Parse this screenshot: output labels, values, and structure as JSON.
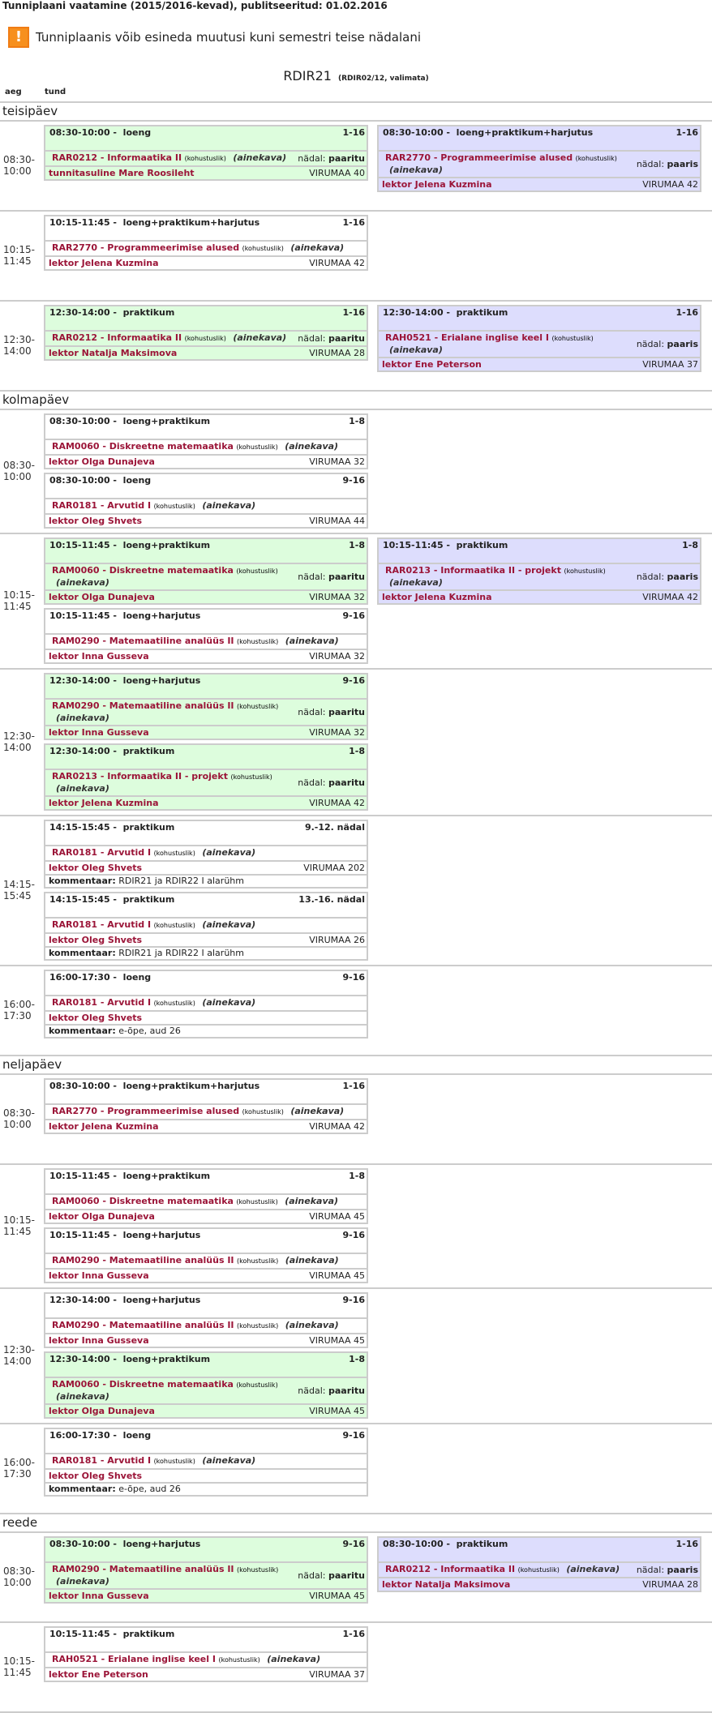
{
  "page": {
    "title": "Tunniplaani vaatamine (2015/2016-kevad), publitseeritud: 01.02.2016",
    "warning": "Tunniplaanis võib esineda muutusi kuni semestri teise nädalani",
    "warning_icon": "exclamation-icon",
    "group_name": "RDIR21",
    "group_sub": "(RDIR02/12, valimata)",
    "col_time": "aeg",
    "col_lesson": "tund"
  },
  "labels": {
    "week": "nädal:",
    "comment": "kommentaar:",
    "required": "(kohustuslik)",
    "ainekava": "(ainekava)"
  },
  "colors": {
    "green": "#ddfddd",
    "purple": "#ddddfd",
    "link": "#9b1538",
    "warning": "#f7901e"
  },
  "days": [
    {
      "name": "teisipäev",
      "slots": [
        {
          "start": "08:30-",
          "end": "10:00",
          "cols": [
            [
              {
                "color": "green",
                "time": "08:30-10:00 -",
                "type": "loeng",
                "weeks": "1-16",
                "course": "RAR0212 - Informaatika II",
                "parity": "paaritu",
                "teacher": "tunnitasuline Mare Roosileht",
                "room": "VIRUMAA 40"
              }
            ],
            [
              {
                "color": "purple",
                "time": "08:30-10:00 -",
                "type": "loeng+praktikum+harjutus",
                "weeks": "1-16",
                "course": "RAR2770 - Programmeerimise alused",
                "parity": "paaris",
                "teacher": "lektor Jelena Kuzmina",
                "room": "VIRUMAA 42"
              }
            ]
          ]
        },
        {
          "start": "10:15-",
          "end": "11:45",
          "cols": [
            [
              {
                "color": "white",
                "time": "10:15-11:45 -",
                "type": "loeng+praktikum+harjutus",
                "weeks": "1-16",
                "course": "RAR2770 - Programmeerimise alused",
                "teacher": "lektor Jelena Kuzmina",
                "room": "VIRUMAA 42"
              }
            ]
          ]
        },
        {
          "start": "12:30-",
          "end": "14:00",
          "cols": [
            [
              {
                "color": "green",
                "time": "12:30-14:00 -",
                "type": "praktikum",
                "weeks": "1-16",
                "course": "RAR0212 - Informaatika II",
                "parity": "paaritu",
                "teacher": "lektor Natalja Maksimova",
                "room": "VIRUMAA 28"
              }
            ],
            [
              {
                "color": "purple",
                "time": "12:30-14:00 -",
                "type": "praktikum",
                "weeks": "1-16",
                "course": "RAH0521 - Erialane inglise keel I",
                "parity": "paaris",
                "teacher": "lektor Ene Peterson",
                "room": "VIRUMAA 37"
              }
            ]
          ]
        }
      ]
    },
    {
      "name": "kolmapäev",
      "slots": [
        {
          "start": "08:30-",
          "end": "10:00",
          "cols": [
            [
              {
                "color": "white",
                "time": "08:30-10:00 -",
                "type": "loeng+praktikum",
                "weeks": "1-8",
                "course": "RAM0060 - Diskreetne matemaatika",
                "teacher": "lektor Olga Dunajeva",
                "room": "VIRUMAA 32"
              },
              {
                "color": "white",
                "time": "08:30-10:00 -",
                "type": "loeng",
                "weeks": "9-16",
                "course": "RAR0181 - Arvutid I",
                "teacher": "lektor Oleg Shvets",
                "room": "VIRUMAA 44"
              }
            ]
          ]
        },
        {
          "start": "10:15-",
          "end": "11:45",
          "cols": [
            [
              {
                "color": "green",
                "time": "10:15-11:45 -",
                "type": "loeng+praktikum",
                "weeks": "1-8",
                "course": "RAM0060 - Diskreetne matemaatika",
                "parity": "paaritu",
                "teacher": "lektor Olga Dunajeva",
                "room": "VIRUMAA 32"
              },
              {
                "color": "white",
                "time": "10:15-11:45 -",
                "type": "loeng+harjutus",
                "weeks": "9-16",
                "course": "RAM0290 - Matemaatiline analüüs II",
                "teacher": "lektor Inna Gusseva",
                "room": "VIRUMAA 32"
              }
            ],
            [
              {
                "color": "purple",
                "time": "10:15-11:45 -",
                "type": "praktikum",
                "weeks": "1-8",
                "course": "RAR0213 - Informaatika II - projekt",
                "parity": "paaris",
                "teacher": "lektor Jelena Kuzmina",
                "room": "VIRUMAA 42"
              }
            ]
          ]
        },
        {
          "start": "12:30-",
          "end": "14:00",
          "cols": [
            [
              {
                "color": "green",
                "time": "12:30-14:00 -",
                "type": "loeng+harjutus",
                "weeks": "9-16",
                "course": "RAM0290 - Matemaatiline analüüs II",
                "parity": "paaritu",
                "teacher": "lektor Inna Gusseva",
                "room": "VIRUMAA 32"
              },
              {
                "color": "green",
                "time": "12:30-14:00 -",
                "type": "praktikum",
                "weeks": "1-8",
                "course": "RAR0213 - Informaatika II - projekt",
                "parity": "paaritu",
                "teacher": "lektor Jelena Kuzmina",
                "room": "VIRUMAA 42"
              }
            ]
          ]
        },
        {
          "start": "14:15-",
          "end": "15:45",
          "cols": [
            [
              {
                "color": "white",
                "time": "14:15-15:45 -",
                "type": "praktikum",
                "weeks": "9.-12. nädal",
                "course": "RAR0181 - Arvutid I",
                "teacher": "lektor Oleg Shvets",
                "room": "VIRUMAA 202",
                "comment": "RDIR21 ja RDIR22 I alarühm"
              },
              {
                "color": "white",
                "time": "14:15-15:45 -",
                "type": "praktikum",
                "weeks": "13.-16. nädal",
                "course": "RAR0181 - Arvutid I",
                "teacher": "lektor Oleg Shvets",
                "room": "VIRUMAA 26",
                "comment": "RDIR21 ja RDIR22 I alarühm"
              }
            ]
          ]
        },
        {
          "start": "16:00-",
          "end": "17:30",
          "cols": [
            [
              {
                "color": "white",
                "time": "16:00-17:30 -",
                "type": "loeng",
                "weeks": "9-16",
                "course": "RAR0181 - Arvutid I",
                "teacher": "lektor Oleg Shvets",
                "room": "",
                "comment": "e-õpe, aud 26"
              }
            ]
          ]
        }
      ]
    },
    {
      "name": "neljapäev",
      "slots": [
        {
          "start": "08:30-",
          "end": "10:00",
          "cols": [
            [
              {
                "color": "white",
                "time": "08:30-10:00 -",
                "type": "loeng+praktikum+harjutus",
                "weeks": "1-16",
                "course": "RAR2770 - Programmeerimise alused",
                "teacher": "lektor Jelena Kuzmina",
                "room": "VIRUMAA 42"
              }
            ]
          ]
        },
        {
          "start": "10:15-",
          "end": "11:45",
          "cols": [
            [
              {
                "color": "white",
                "time": "10:15-11:45 -",
                "type": "loeng+praktikum",
                "weeks": "1-8",
                "course": "RAM0060 - Diskreetne matemaatika",
                "teacher": "lektor Olga Dunajeva",
                "room": "VIRUMAA 45"
              },
              {
                "color": "white",
                "time": "10:15-11:45 -",
                "type": "loeng+harjutus",
                "weeks": "9-16",
                "course": "RAM0290 - Matemaatiline analüüs II",
                "teacher": "lektor Inna Gusseva",
                "room": "VIRUMAA 45"
              }
            ]
          ]
        },
        {
          "start": "12:30-",
          "end": "14:00",
          "cols": [
            [
              {
                "color": "white",
                "time": "12:30-14:00 -",
                "type": "loeng+harjutus",
                "weeks": "9-16",
                "course": "RAM0290 - Matemaatiline analüüs II",
                "teacher": "lektor Inna Gusseva",
                "room": "VIRUMAA 45"
              },
              {
                "color": "green",
                "time": "12:30-14:00 -",
                "type": "loeng+praktikum",
                "weeks": "1-8",
                "course": "RAM0060 - Diskreetne matemaatika",
                "parity": "paaritu",
                "teacher": "lektor Olga Dunajeva",
                "room": "VIRUMAA 45"
              }
            ]
          ]
        },
        {
          "start": "16:00-",
          "end": "17:30",
          "cols": [
            [
              {
                "color": "white",
                "time": "16:00-17:30 -",
                "type": "loeng",
                "weeks": "9-16",
                "course": "RAR0181 - Arvutid I",
                "teacher": "lektor Oleg Shvets",
                "room": "",
                "comment": "e-õpe, aud 26"
              }
            ]
          ]
        }
      ]
    },
    {
      "name": "reede",
      "slots": [
        {
          "start": "08:30-",
          "end": "10:00",
          "cols": [
            [
              {
                "color": "green",
                "time": "08:30-10:00 -",
                "type": "loeng+harjutus",
                "weeks": "9-16",
                "course": "RAM0290 - Matemaatiline analüüs II",
                "parity": "paaritu",
                "teacher": "lektor Inna Gusseva",
                "room": "VIRUMAA 45"
              }
            ],
            [
              {
                "color": "purple",
                "time": "08:30-10:00 -",
                "type": "praktikum",
                "weeks": "1-16",
                "course": "RAR0212 - Informaatika II",
                "parity": "paaris",
                "teacher": "lektor Natalja Maksimova",
                "room": "VIRUMAA 28"
              }
            ]
          ]
        },
        {
          "start": "10:15-",
          "end": "11:45",
          "cols": [
            [
              {
                "color": "white",
                "time": "10:15-11:45 -",
                "type": "praktikum",
                "weeks": "1-16",
                "course": "RAH0521 - Erialane inglise keel I",
                "teacher": "lektor Ene Peterson",
                "room": "VIRUMAA 37"
              }
            ]
          ]
        }
      ]
    }
  ]
}
